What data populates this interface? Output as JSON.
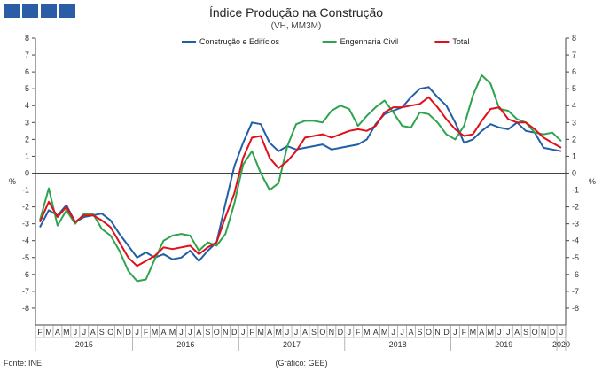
{
  "header": {
    "logo": "INE-logo"
  },
  "chart_data": {
    "type": "line",
    "title": "Índice Produção na Construção",
    "subtitle": "(VH, MM3M)",
    "ylabel_left": "%",
    "ylabel_right": "%",
    "ylim": [
      -9,
      8
    ],
    "yticks": [
      -8,
      -7,
      -6,
      -5,
      -4,
      -3,
      -2,
      -1,
      0,
      1,
      2,
      3,
      4,
      5,
      6,
      7,
      8
    ],
    "months": [
      "F",
      "M",
      "A",
      "M",
      "J",
      "J",
      "A",
      "S",
      "O",
      "N",
      "D",
      "J",
      "F",
      "M",
      "A",
      "M",
      "J",
      "J",
      "A",
      "S",
      "O",
      "N",
      "D",
      "J",
      "F",
      "M",
      "A",
      "M",
      "J",
      "J",
      "A",
      "S",
      "O",
      "N",
      "D",
      "J",
      "F",
      "M",
      "A",
      "M",
      "J",
      "J",
      "A",
      "S",
      "O",
      "N",
      "D",
      "J",
      "F",
      "M",
      "A",
      "M",
      "J",
      "J",
      "A",
      "S",
      "O",
      "N",
      "D",
      "J"
    ],
    "years": [
      {
        "label": "2015",
        "start": 0,
        "end": 10
      },
      {
        "label": "2016",
        "start": 11,
        "end": 22
      },
      {
        "label": "2017",
        "start": 23,
        "end": 34
      },
      {
        "label": "2018",
        "start": 35,
        "end": 46
      },
      {
        "label": "2019",
        "start": 47,
        "end": 58
      },
      {
        "label": "2020",
        "start": 59,
        "end": 59
      }
    ],
    "series": [
      {
        "name": "Construção e Edifícios",
        "color": "#1f5fa8",
        "values": [
          -3.2,
          -2.2,
          -2.5,
          -1.9,
          -2.9,
          -2.6,
          -2.5,
          -2.4,
          -2.8,
          -3.6,
          -4.3,
          -5.0,
          -4.7,
          -5.0,
          -4.8,
          -5.1,
          -5.0,
          -4.6,
          -5.2,
          -4.6,
          -4.1,
          -1.8,
          0.4,
          1.8,
          3.0,
          2.9,
          1.8,
          1.3,
          1.6,
          1.4,
          1.5,
          1.6,
          1.7,
          1.4,
          1.5,
          1.6,
          1.7,
          2.0,
          2.9,
          3.5,
          3.7,
          3.9,
          4.5,
          5.0,
          5.1,
          4.5,
          4.0,
          3.0,
          1.8,
          2.0,
          2.5,
          2.9,
          2.7,
          2.6,
          3.0,
          2.5,
          2.4,
          1.5,
          1.4,
          1.3
        ]
      },
      {
        "name": "Engenharia Civil",
        "color": "#2ea44f",
        "values": [
          -2.8,
          -0.9,
          -3.1,
          -2.2,
          -3.0,
          -2.4,
          -2.4,
          -3.3,
          -3.7,
          -4.6,
          -5.8,
          -6.4,
          -6.3,
          -5.1,
          -4.0,
          -3.7,
          -3.6,
          -3.7,
          -4.6,
          -4.1,
          -4.3,
          -3.6,
          -1.8,
          0.5,
          1.3,
          0.0,
          -1.0,
          -0.6,
          1.6,
          2.9,
          3.1,
          3.1,
          3.0,
          3.7,
          4.0,
          3.8,
          2.8,
          3.4,
          3.9,
          4.3,
          3.6,
          2.8,
          2.7,
          3.6,
          3.5,
          3.0,
          2.3,
          2.0,
          2.8,
          4.6,
          5.8,
          5.3,
          3.8,
          3.7,
          3.2,
          3.0,
          2.4,
          2.3,
          2.4,
          1.9
        ]
      },
      {
        "name": "Total",
        "color": "#e0101a",
        "values": [
          -2.9,
          -1.7,
          -2.6,
          -2.0,
          -2.9,
          -2.5,
          -2.5,
          -2.8,
          -3.2,
          -4.1,
          -5.0,
          -5.5,
          -5.2,
          -4.9,
          -4.4,
          -4.5,
          -4.4,
          -4.3,
          -4.8,
          -4.4,
          -4.1,
          -2.6,
          -1.2,
          0.9,
          2.1,
          2.2,
          0.9,
          0.3,
          0.7,
          1.3,
          2.1,
          2.2,
          2.3,
          2.1,
          2.3,
          2.5,
          2.6,
          2.5,
          2.8,
          3.6,
          3.9,
          3.9,
          4.0,
          4.1,
          4.5,
          3.9,
          3.2,
          2.6,
          2.2,
          2.3,
          3.1,
          3.8,
          3.9,
          3.2,
          3.0,
          3.0,
          2.6,
          2.1,
          1.8,
          1.5
        ]
      }
    ],
    "notes": {
      "source": "Fonte: INE",
      "credit": "(Gráfico: GEE)"
    }
  }
}
